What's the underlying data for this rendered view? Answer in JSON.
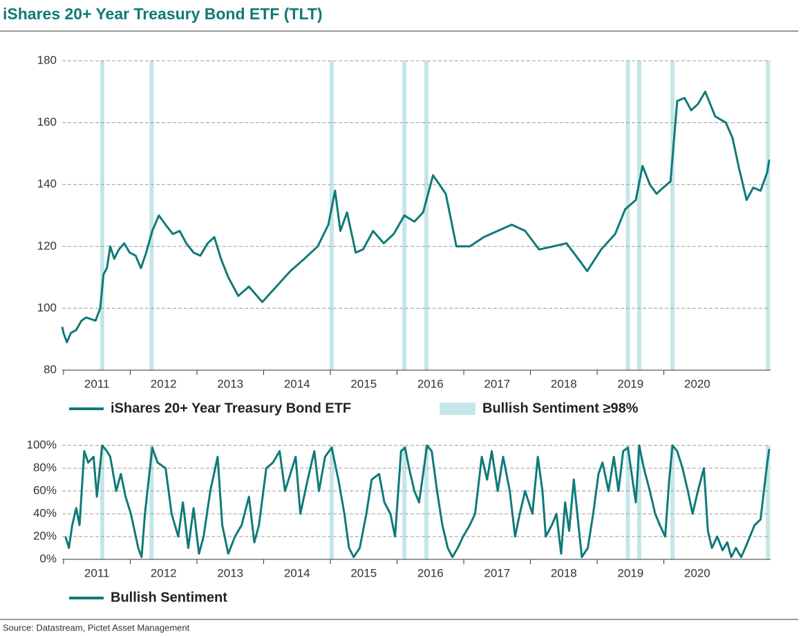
{
  "title": "iShares 20+ Year Treasury Bond ETF (TLT)",
  "source": "Source: Datastream, Pictet Asset Management",
  "chart_data": [
    {
      "type": "line",
      "x": [
        2010.98,
        2011.0,
        2011.05,
        2011.11,
        2011.19,
        2011.27,
        2011.34,
        2011.48,
        2011.55,
        2011.6,
        2011.65,
        2011.7,
        2011.76,
        2011.83,
        2011.91,
        2011.99,
        2012.08,
        2012.16,
        2012.24,
        2012.33,
        2012.43,
        2012.53,
        2012.64,
        2012.74,
        2012.84,
        2012.95,
        2013.05,
        2013.16,
        2013.26,
        2013.36,
        2013.47,
        2013.62,
        2013.78,
        2013.98,
        2014.19,
        2014.4,
        2014.61,
        2014.81,
        2014.97,
        2015.07,
        2015.15,
        2015.25,
        2015.38,
        2015.49,
        2015.64,
        2015.8,
        2015.95,
        2016.11,
        2016.26,
        2016.39,
        2016.54,
        2016.73,
        2016.89,
        2017.09,
        2017.3,
        2017.51,
        2017.72,
        2017.92,
        2018.13,
        2018.34,
        2018.54,
        2018.75,
        2018.85,
        2019.06,
        2019.27,
        2019.42,
        2019.58,
        2019.68,
        2019.79,
        2019.89,
        2019.99,
        2020.1,
        2020.2,
        2020.31,
        2020.41,
        2020.51,
        2020.62,
        2020.77,
        2020.93,
        2021.03,
        2021.13,
        2021.24,
        2021.34,
        2021.45,
        2021.55,
        2021.58
      ],
      "series": [
        {
          "name": "iShares 20+ Year Treasury Bond ETF",
          "color": "#0e7a78",
          "values": [
            94,
            92,
            89,
            92,
            93,
            96,
            97,
            96,
            100,
            111,
            113,
            120,
            116,
            119,
            121,
            118,
            117,
            113,
            118,
            125,
            130,
            127,
            124,
            125,
            121,
            118,
            117,
            121,
            123,
            116,
            110,
            104,
            107,
            102,
            107,
            112,
            116,
            120,
            127,
            138,
            125,
            131,
            118,
            119,
            125,
            121,
            124,
            130,
            128,
            131,
            143,
            137,
            120,
            120,
            123,
            125,
            127,
            125,
            119,
            120,
            121,
            115,
            112,
            119,
            124,
            132,
            135,
            146,
            140,
            137,
            139,
            141,
            167,
            168,
            164,
            166,
            170,
            162,
            160,
            155,
            145,
            135,
            139,
            138,
            144,
            148
          ]
        }
      ],
      "highlight": {
        "name": "Bullish Sentiment ≥98%",
        "color": "#c5e6e8",
        "x": [
          2011.58,
          2012.32,
          2015.02,
          2016.11,
          2016.44,
          2019.46,
          2019.63,
          2020.13,
          2021.56
        ]
      },
      "xlim": [
        2010.98,
        2021.6
      ],
      "xticks": [
        {
          "value": 2011.5,
          "label": "2011"
        },
        {
          "value": 2012.5,
          "label": "2012"
        },
        {
          "value": 2013.5,
          "label": "2013"
        },
        {
          "value": 2014.5,
          "label": "2014"
        },
        {
          "value": 2015.5,
          "label": "2015"
        },
        {
          "value": 2016.5,
          "label": "2016"
        },
        {
          "value": 2017.5,
          "label": "2017"
        },
        {
          "value": 2018.5,
          "label": "2018"
        },
        {
          "value": 2019.5,
          "label": "2019"
        },
        {
          "value": 2020.5,
          "label": "2020"
        }
      ],
      "ylim": [
        80,
        180
      ],
      "yticks": [
        80,
        100,
        120,
        140,
        160,
        180
      ],
      "grid": true
    },
    {
      "type": "line",
      "x": [
        2011.03,
        2011.08,
        2011.13,
        2011.19,
        2011.24,
        2011.31,
        2011.37,
        2011.45,
        2011.5,
        2011.58,
        2011.65,
        2011.7,
        2011.79,
        2011.86,
        2011.93,
        2012.01,
        2012.12,
        2012.17,
        2012.22,
        2012.33,
        2012.41,
        2012.53,
        2012.62,
        2012.72,
        2012.79,
        2012.87,
        2012.95,
        2013.03,
        2013.1,
        2013.2,
        2013.31,
        2013.38,
        2013.47,
        2013.57,
        2013.67,
        2013.78,
        2013.86,
        2013.93,
        2014.04,
        2014.14,
        2014.24,
        2014.32,
        2014.4,
        2014.48,
        2014.55,
        2014.66,
        2014.76,
        2014.83,
        2014.92,
        2015.02,
        2015.12,
        2015.21,
        2015.28,
        2015.35,
        2015.44,
        2015.54,
        2015.62,
        2015.73,
        2015.81,
        2015.9,
        2015.97,
        2016.06,
        2016.12,
        2016.18,
        2016.26,
        2016.33,
        2016.39,
        2016.45,
        2016.52,
        2016.6,
        2016.68,
        2016.76,
        2016.83,
        2016.91,
        2016.99,
        2017.09,
        2017.17,
        2017.27,
        2017.35,
        2017.42,
        2017.51,
        2017.59,
        2017.69,
        2017.77,
        2017.84,
        2017.92,
        2018.03,
        2018.11,
        2018.18,
        2018.23,
        2018.32,
        2018.39,
        2018.46,
        2018.52,
        2018.58,
        2018.65,
        2018.72,
        2018.77,
        2018.86,
        2018.94,
        2019.02,
        2019.08,
        2019.17,
        2019.25,
        2019.32,
        2019.39,
        2019.46,
        2019.53,
        2019.58,
        2019.63,
        2019.7,
        2019.79,
        2019.87,
        2019.94,
        2020.02,
        2020.08,
        2020.13,
        2020.2,
        2020.28,
        2020.36,
        2020.43,
        2020.51,
        2020.6,
        2020.66,
        2020.72,
        2020.8,
        2020.88,
        2020.95,
        2021.01,
        2021.08,
        2021.16,
        2021.22,
        2021.29,
        2021.36,
        2021.45,
        2021.5,
        2021.55,
        2021.58
      ],
      "series": [
        {
          "name": "Bullish Sentiment",
          "color": "#0e7a78",
          "values": [
            20,
            10,
            30,
            45,
            30,
            95,
            85,
            90,
            55,
            100,
            95,
            90,
            60,
            75,
            55,
            40,
            10,
            2,
            40,
            98,
            85,
            80,
            40,
            20,
            50,
            10,
            45,
            5,
            20,
            60,
            90,
            30,
            5,
            20,
            30,
            55,
            15,
            30,
            80,
            85,
            95,
            60,
            75,
            90,
            40,
            70,
            95,
            60,
            90,
            98,
            70,
            40,
            10,
            2,
            10,
            40,
            70,
            75,
            50,
            40,
            20,
            95,
            98,
            80,
            60,
            50,
            75,
            100,
            95,
            60,
            30,
            10,
            2,
            10,
            20,
            30,
            40,
            90,
            70,
            95,
            60,
            90,
            60,
            20,
            40,
            60,
            40,
            90,
            60,
            20,
            30,
            40,
            5,
            50,
            25,
            70,
            30,
            2,
            10,
            40,
            75,
            85,
            60,
            90,
            60,
            95,
            98,
            70,
            50,
            100,
            80,
            60,
            40,
            30,
            20,
            70,
            100,
            95,
            80,
            60,
            40,
            60,
            80,
            25,
            10,
            20,
            8,
            15,
            2,
            10,
            2,
            10,
            20,
            30,
            35,
            60,
            85,
            97
          ]
        }
      ],
      "xlim": [
        2010.98,
        2021.6
      ],
      "xticks": [
        {
          "value": 2011.5,
          "label": "2011"
        },
        {
          "value": 2012.5,
          "label": "2012"
        },
        {
          "value": 2013.5,
          "label": "2013"
        },
        {
          "value": 2014.5,
          "label": "2014"
        },
        {
          "value": 2015.5,
          "label": "2015"
        },
        {
          "value": 2016.5,
          "label": "2016"
        },
        {
          "value": 2017.5,
          "label": "2017"
        },
        {
          "value": 2018.5,
          "label": "2018"
        },
        {
          "value": 2019.5,
          "label": "2019"
        },
        {
          "value": 2020.5,
          "label": "2020"
        }
      ],
      "ylim": [
        0,
        100
      ],
      "yticks": [
        {
          "value": 0,
          "label": "0%"
        },
        {
          "value": 20,
          "label": "20%"
        },
        {
          "value": 40,
          "label": "40%"
        },
        {
          "value": 60,
          "label": "60%"
        },
        {
          "value": 80,
          "label": "80%"
        },
        {
          "value": 100,
          "label": "100%"
        }
      ],
      "grid": true
    }
  ]
}
